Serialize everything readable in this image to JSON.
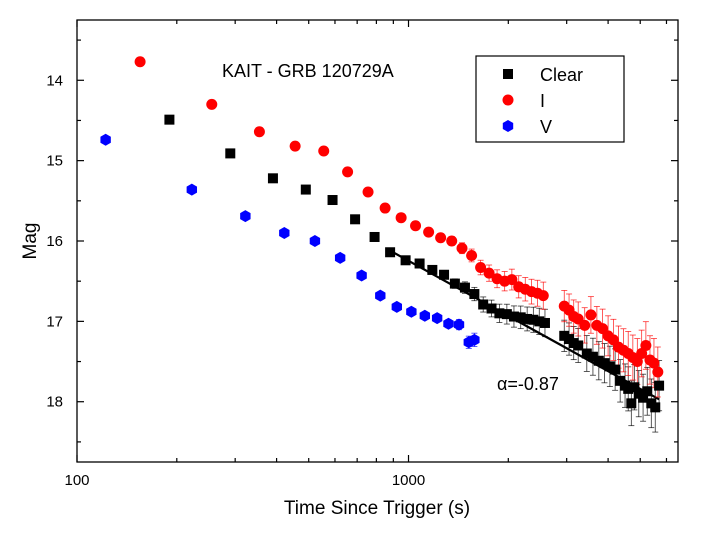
{
  "chart_data": {
    "type": "scatter",
    "title": "KAIT - GRB 120729A",
    "xlabel": "Time Since Trigger (s)",
    "ylabel": "Mag",
    "x_scale": "log",
    "y_inverted": true,
    "xlim": [
      100,
      6500
    ],
    "ylim": [
      18.75,
      13.25
    ],
    "x_ticks": [
      100,
      1000
    ],
    "x_tick_labels": [
      "100",
      "1000"
    ],
    "y_ticks": [
      14,
      15,
      16,
      17,
      18
    ],
    "y_tick_labels": [
      "14",
      "15",
      "16",
      "17",
      "18"
    ],
    "grid": false,
    "legend_position": "top-right",
    "series": [
      {
        "name": "Clear",
        "marker": "square",
        "color": "#000000",
        "points": [
          [
            190,
            14.49
          ],
          [
            290,
            14.91
          ],
          [
            390,
            15.22
          ],
          [
            490,
            15.36
          ],
          [
            590,
            15.49
          ],
          [
            690,
            15.73
          ],
          [
            790,
            15.95
          ],
          [
            880,
            16.14
          ],
          [
            980,
            16.24
          ],
          [
            1080,
            16.28
          ],
          [
            1180,
            16.36
          ],
          [
            1280,
            16.42
          ],
          [
            1380,
            16.53
          ],
          [
            1480,
            16.58
          ],
          [
            1580,
            16.66
          ],
          [
            1680,
            16.79
          ],
          [
            1780,
            16.84
          ],
          [
            1880,
            16.9
          ],
          [
            1980,
            16.91
          ],
          [
            2080,
            16.94
          ],
          [
            2180,
            16.95
          ],
          [
            2280,
            16.97
          ],
          [
            2380,
            16.98
          ],
          [
            2480,
            17.0
          ],
          [
            2580,
            17.02
          ],
          [
            2950,
            17.18
          ],
          [
            3050,
            17.22
          ],
          [
            3150,
            17.27
          ],
          [
            3250,
            17.3
          ],
          [
            3450,
            17.4
          ],
          [
            3600,
            17.44
          ],
          [
            3750,
            17.49
          ],
          [
            3900,
            17.52
          ],
          [
            4050,
            17.56
          ],
          [
            4200,
            17.6
          ],
          [
            4350,
            17.74
          ],
          [
            4500,
            17.8
          ],
          [
            4600,
            17.84
          ],
          [
            4700,
            18.02
          ],
          [
            4800,
            17.82
          ],
          [
            4950,
            17.9
          ],
          [
            5100,
            17.95
          ],
          [
            5250,
            17.87
          ],
          [
            5400,
            18.02
          ],
          [
            5550,
            18.07
          ],
          [
            5700,
            17.8
          ]
        ]
      },
      {
        "name": "I",
        "marker": "circle",
        "color": "#ff0000",
        "points": [
          [
            155,
            13.77
          ],
          [
            255,
            14.3
          ],
          [
            355,
            14.64
          ],
          [
            455,
            14.82
          ],
          [
            555,
            14.88
          ],
          [
            655,
            15.14
          ],
          [
            755,
            15.39
          ],
          [
            850,
            15.59
          ],
          [
            950,
            15.71
          ],
          [
            1050,
            15.81
          ],
          [
            1150,
            15.89
          ],
          [
            1250,
            15.96
          ],
          [
            1350,
            16.0
          ],
          [
            1450,
            16.09
          ],
          [
            1550,
            16.18
          ],
          [
            1650,
            16.33
          ],
          [
            1750,
            16.4
          ],
          [
            1850,
            16.47
          ],
          [
            1950,
            16.5
          ],
          [
            2050,
            16.48
          ],
          [
            2150,
            16.57
          ],
          [
            2250,
            16.6
          ],
          [
            2350,
            16.63
          ],
          [
            2450,
            16.65
          ],
          [
            2550,
            16.68
          ],
          [
            2950,
            16.81
          ],
          [
            3050,
            16.86
          ],
          [
            3150,
            16.94
          ],
          [
            3250,
            16.97
          ],
          [
            3400,
            17.05
          ],
          [
            3550,
            16.92
          ],
          [
            3700,
            17.05
          ],
          [
            3850,
            17.09
          ],
          [
            4000,
            17.18
          ],
          [
            4150,
            17.23
          ],
          [
            4300,
            17.32
          ],
          [
            4450,
            17.36
          ],
          [
            4600,
            17.4
          ],
          [
            4750,
            17.45
          ],
          [
            4900,
            17.5
          ],
          [
            5050,
            17.4
          ],
          [
            5200,
            17.3
          ],
          [
            5350,
            17.48
          ],
          [
            5500,
            17.52
          ],
          [
            5650,
            17.63
          ]
        ]
      },
      {
        "name": "V",
        "marker": "hexagon",
        "color": "#0000ff",
        "points": [
          [
            122,
            14.74
          ],
          [
            222,
            15.36
          ],
          [
            322,
            15.69
          ],
          [
            422,
            15.9
          ],
          [
            522,
            16.0
          ],
          [
            622,
            16.21
          ],
          [
            722,
            16.43
          ],
          [
            822,
            16.68
          ],
          [
            922,
            16.82
          ],
          [
            1020,
            16.88
          ],
          [
            1120,
            16.93
          ],
          [
            1220,
            16.96
          ],
          [
            1320,
            17.03
          ],
          [
            1420,
            17.04
          ],
          [
            1520,
            17.26
          ],
          [
            1580,
            17.23
          ]
        ]
      }
    ],
    "fit_line": {
      "label": "α=-0.87",
      "color": "#000000",
      "x": [
        880,
        5700
      ],
      "y": [
        16.12,
        17.97
      ]
    }
  }
}
